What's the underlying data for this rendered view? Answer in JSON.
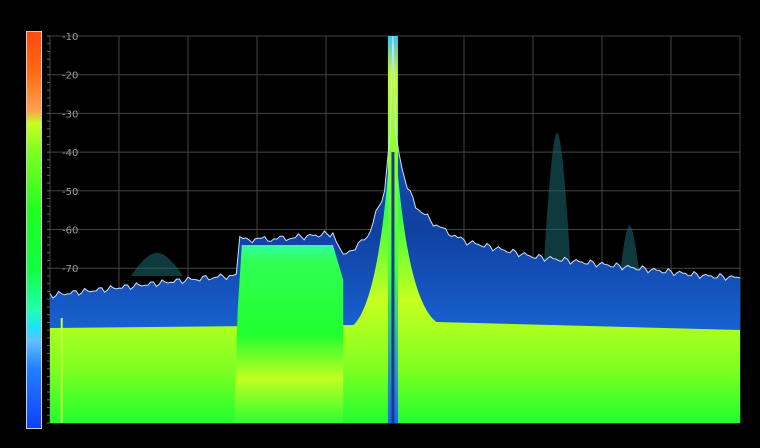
{
  "chart_data": {
    "type": "area",
    "title": "",
    "xlabel": "",
    "ylabel": "",
    "y_ticks": [
      "-10",
      "-20",
      "-30",
      "-40",
      "-50",
      "-60",
      "-70"
    ],
    "ylim": [
      -110,
      -10
    ],
    "x_divisions": 10,
    "grid": true,
    "colorbar": "left",
    "trace": {
      "x": [
        0,
        0.5,
        1,
        1.5,
        2,
        2.6,
        2.7,
        2.75,
        3.2,
        3.6,
        4.1,
        4.25,
        4.6,
        4.85,
        4.93,
        4.97,
        5.01,
        5.1,
        5.3,
        5.6,
        6,
        6.5,
        7,
        7.5,
        8,
        8.5,
        9,
        9.5,
        10
      ],
      "y": [
        -77,
        -76,
        -75,
        -74,
        -73,
        -72,
        -71.5,
        -62.5,
        -62.5,
        -62,
        -61,
        -67,
        -62,
        -50,
        -35,
        -10,
        -35,
        -45,
        -54,
        -59,
        -63,
        -65,
        -67,
        -68,
        -69,
        -70,
        -71,
        -72,
        -72.5
      ]
    },
    "ghost_signals": [
      {
        "x": 1.55,
        "y": -66
      },
      {
        "x": 7.35,
        "y": -35
      },
      {
        "x": 8.4,
        "y": -59
      }
    ],
    "colors": {
      "grid": "#444444",
      "trace": "#c8e0ff",
      "persistence_low": "#1040ff",
      "persistence_high": "#c8ff20"
    }
  }
}
